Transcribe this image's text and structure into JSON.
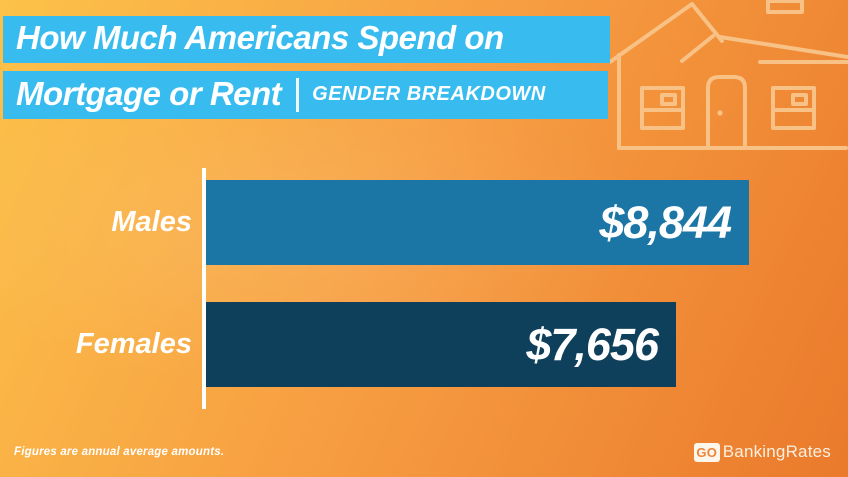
{
  "title": {
    "line1": "How Much Americans Spend on",
    "line2": "Mortgage or Rent",
    "subtitle": "GENDER BREAKDOWN"
  },
  "chart_data": {
    "type": "bar",
    "orientation": "horizontal",
    "categories": [
      "Males",
      "Females"
    ],
    "values": [
      8844,
      7656
    ],
    "value_labels": [
      "$8,844",
      "$7,656"
    ],
    "bar_colors": [
      "#1B76A6",
      "#0E405C"
    ],
    "xlim": [
      0,
      8844
    ],
    "grid": false,
    "legend": false,
    "value_label_position": "inside-end"
  },
  "footnote": "Figures are annual average amounts.",
  "logo": {
    "go": "GO",
    "rest": "BankingRates"
  },
  "icons": {
    "house_watermark": "house-icon"
  },
  "colors": {
    "banner_blue": "#38BCF0",
    "bar_males": "#1B76A6",
    "bar_females": "#0E405C",
    "background_gradient_start": "#FCC249",
    "background_gradient_end": "#EA7A2C",
    "text_white": "#FFFFFF",
    "house_outline": "#F8C186",
    "logo_go_text": "#EF8438"
  }
}
